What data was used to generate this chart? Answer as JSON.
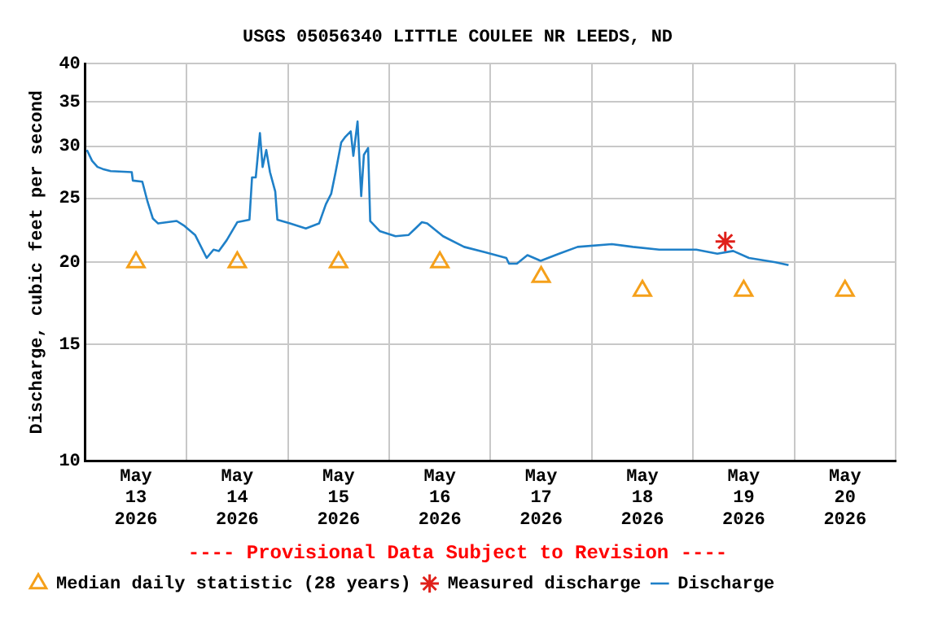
{
  "chart_data": {
    "type": "line",
    "title": "USGS 05056340 LITTLE COULEE NR LEEDS, ND",
    "ylabel": "Discharge, cubic feet per second",
    "annotations": [
      "---- Provisional Data Subject to Revision ----"
    ],
    "log": "y",
    "grid": true,
    "legend": "bottom",
    "xlim": [
      "2026-05-13T00:00",
      "2026-05-21T00:00"
    ],
    "xticks": [
      {
        "value": "2026-05-13T00:00",
        "label": null
      },
      {
        "value": "2026-05-13T12:00",
        "label": "May 13 2026"
      },
      {
        "value": "2026-05-14T00:00",
        "label": null
      },
      {
        "value": "2026-05-14T12:00",
        "label": "May 14 2026"
      },
      {
        "value": "2026-05-15T00:00",
        "label": null
      },
      {
        "value": "2026-05-15T12:00",
        "label": "May 15 2026"
      },
      {
        "value": "2026-05-16T00:00",
        "label": null
      },
      {
        "value": "2026-05-16T12:00",
        "label": "May 16 2026"
      },
      {
        "value": "2026-05-17T00:00",
        "label": null
      },
      {
        "value": "2026-05-17T12:00",
        "label": "May 17 2026"
      },
      {
        "value": "2026-05-18T00:00",
        "label": null
      },
      {
        "value": "2026-05-18T12:00",
        "label": "May 18 2026"
      },
      {
        "value": "2026-05-19T00:00",
        "label": null
      },
      {
        "value": "2026-05-19T12:00",
        "label": "May 19 2026"
      },
      {
        "value": "2026-05-20T00:00",
        "label": null
      },
      {
        "value": "2026-05-20T12:00",
        "label": "May 20 2026"
      },
      {
        "value": "2026-05-21T00:00",
        "label": null
      }
    ],
    "ylim": [
      10,
      40
    ],
    "yticks": [
      10,
      15,
      20,
      25,
      30,
      35,
      40
    ],
    "series": [
      {
        "name": "Median daily statistic (28 years)",
        "type": "scatter",
        "marker": "triangle",
        "color": "#f5a01a",
        "x": [
          "2026-05-13T12:00",
          "2026-05-14T12:00",
          "2026-05-15T12:00",
          "2026-05-16T12:00",
          "2026-05-17T12:00",
          "2026-05-18T12:00",
          "2026-05-19T12:00",
          "2026-05-20T12:00"
        ],
        "values": [
          20,
          20,
          20,
          20,
          19,
          18.1,
          18.1,
          18.1
        ]
      },
      {
        "name": "Measured discharge",
        "type": "scatter",
        "marker": "cross",
        "color": "#e0201a",
        "x": [
          "2026-05-19T07:38"
        ],
        "values": [
          21.5
        ]
      },
      {
        "name": "Discharge",
        "type": "line",
        "marker": "none",
        "line_style": "solid",
        "color": "#1f80c8",
        "x": [
          "2026-05-13T00:22",
          "2026-05-13T01:36",
          "2026-05-13T02:53",
          "2026-05-13T04:08",
          "2026-05-13T06:00",
          "2026-05-13T11:00",
          "2026-05-13T11:15",
          "2026-05-13T13:30",
          "2026-05-13T14:45",
          "2026-05-13T16:00",
          "2026-05-13T17:15",
          "2026-05-13T21:38",
          "2026-05-13T23:30",
          "2026-05-14T02:00",
          "2026-05-14T04:45",
          "2026-05-14T06:23",
          "2026-05-14T07:38",
          "2026-05-14T09:30",
          "2026-05-14T12:00",
          "2026-05-14T14:53",
          "2026-05-14T15:30",
          "2026-05-14T16:23",
          "2026-05-14T17:22",
          "2026-05-14T18:00",
          "2026-05-14T18:52",
          "2026-05-14T19:45",
          "2026-05-14T21:00",
          "2026-05-14T21:30",
          "2026-05-15T00:30",
          "2026-05-15T04:15",
          "2026-05-15T07:23",
          "2026-05-15T09:00",
          "2026-05-15T10:15",
          "2026-05-15T11:15",
          "2026-05-15T12:38",
          "2026-05-15T13:37",
          "2026-05-15T14:53",
          "2026-05-15T15:30",
          "2026-05-15T16:30",
          "2026-05-15T17:22",
          "2026-05-15T18:00",
          "2026-05-15T19:00",
          "2026-05-15T19:30",
          "2026-05-15T21:45",
          "2026-05-16T01:30",
          "2026-05-16T04:37",
          "2026-05-16T07:45",
          "2026-05-16T09:00",
          "2026-05-16T12:45",
          "2026-05-16T17:45",
          "2026-05-16T22:45",
          "2026-05-17T00:00",
          "2026-05-17T03:45",
          "2026-05-17T04:23",
          "2026-05-17T06:15",
          "2026-05-17T08:45",
          "2026-05-17T11:53",
          "2026-05-17T16:15",
          "2026-05-17T20:38",
          "2026-05-18T04:45",
          "2026-05-18T09:45",
          "2026-05-18T16:00",
          "2026-05-19T00:45",
          "2026-05-19T05:45",
          "2026-05-19T09:30",
          "2026-05-19T13:15",
          "2026-05-19T19:30",
          "2026-05-19T22:37"
        ],
        "values": [
          29.6,
          28.5,
          27.9,
          27.7,
          27.5,
          27.4,
          26.6,
          26.5,
          24.7,
          23.3,
          22.9,
          23.1,
          22.7,
          22.0,
          20.3,
          20.9,
          20.8,
          21.6,
          23.0,
          23.2,
          26.9,
          26.9,
          31.4,
          27.9,
          29.6,
          27.4,
          25.6,
          23.2,
          22.9,
          22.5,
          22.9,
          24.5,
          25.4,
          27.3,
          30.4,
          31.0,
          31.6,
          29.0,
          32.7,
          25.2,
          29.1,
          29.8,
          23.1,
          22.3,
          21.9,
          22.0,
          23.0,
          22.9,
          21.9,
          21.1,
          20.7,
          20.6,
          20.3,
          19.9,
          19.9,
          20.5,
          20.1,
          20.6,
          21.1,
          21.3,
          21.1,
          20.9,
          20.9,
          20.6,
          20.8,
          20.3,
          20.0,
          19.8
        ]
      }
    ]
  }
}
